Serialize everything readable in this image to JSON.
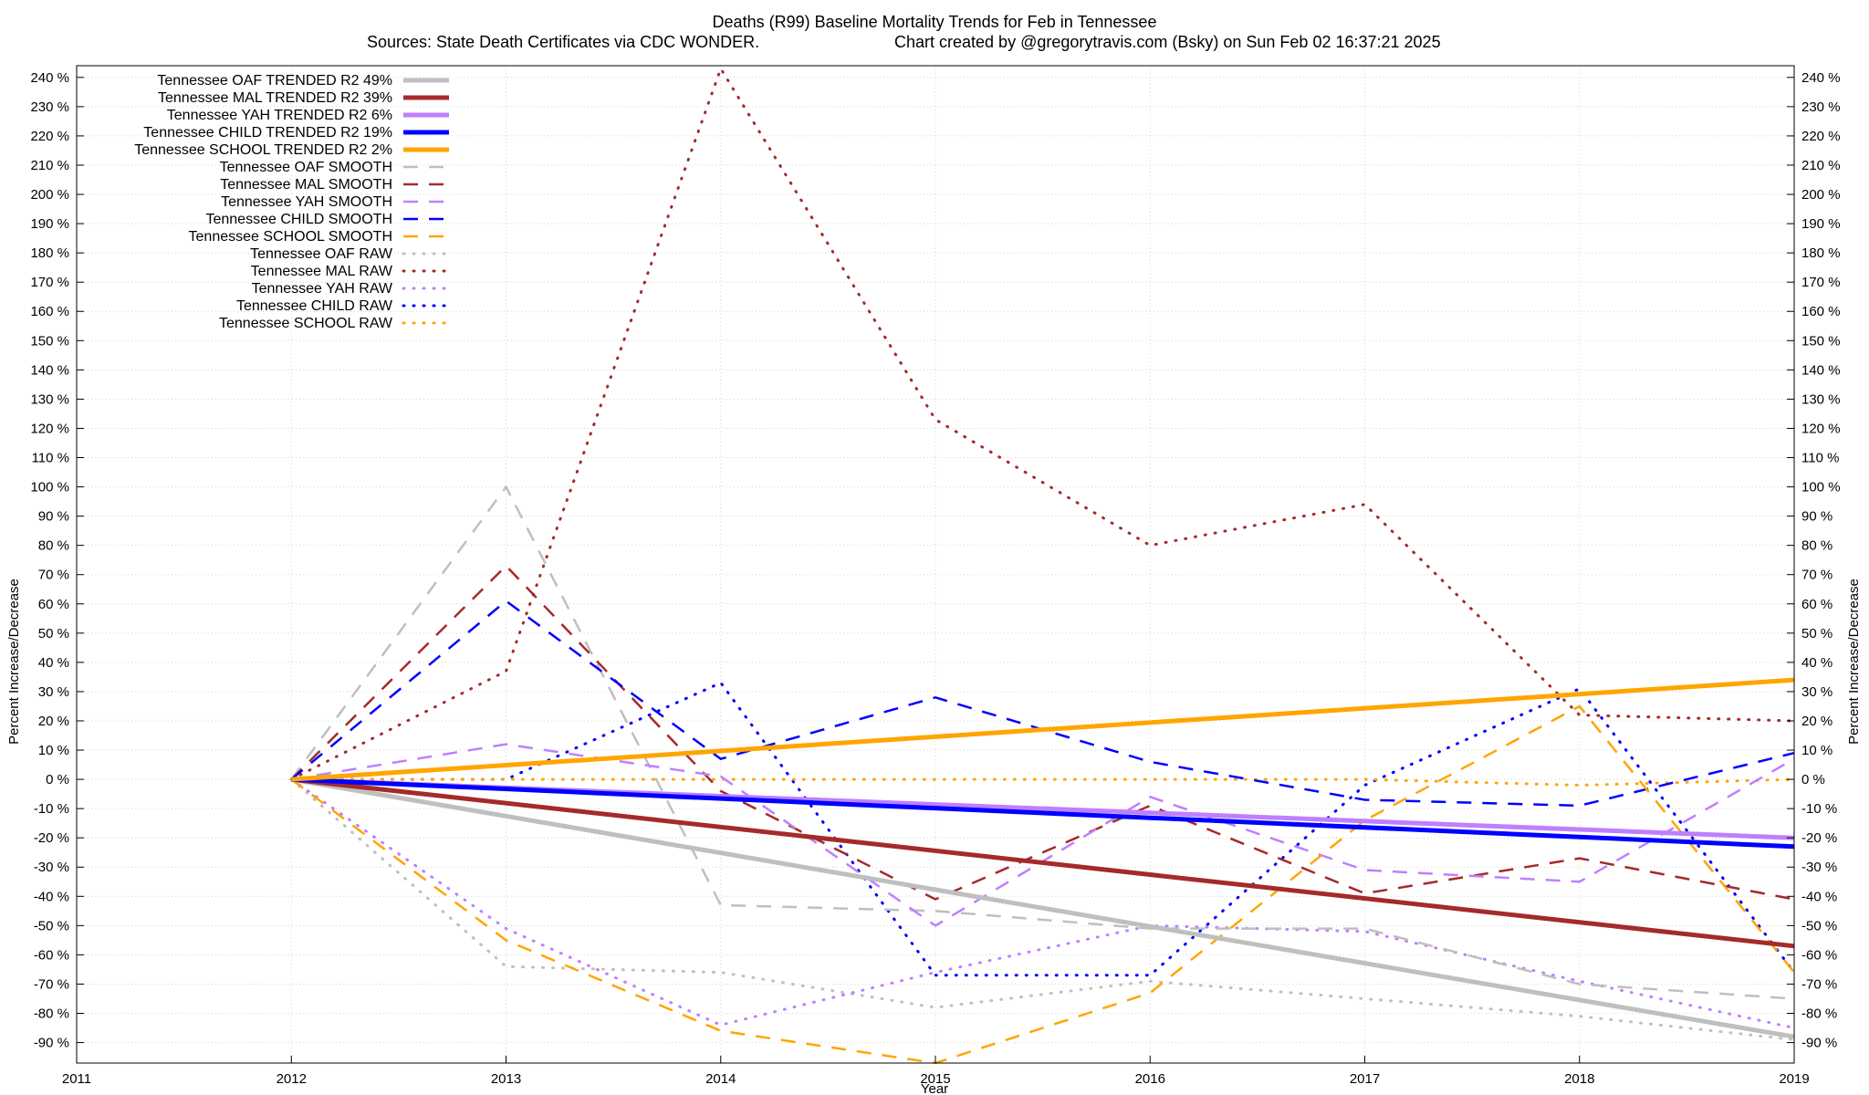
{
  "chart_data": {
    "type": "line",
    "title": "Deaths (R99)  Baseline Mortality Trends for Feb in Tennessee",
    "subtitle_left": "Sources: State Death Certificates via CDC WONDER.",
    "subtitle_right": "Chart created by @gregorytravis.com (Bsky) on Sun Feb 02 16:37:21 2025",
    "xlabel": "Year",
    "ylabel": "Percent Increase/Decrease",
    "xlim": [
      2011,
      2019
    ],
    "ylim": [
      -97,
      244
    ],
    "xticks": [
      2011,
      2012,
      2013,
      2014,
      2015,
      2016,
      2017,
      2018,
      2019
    ],
    "yticks": [
      -90,
      -80,
      -70,
      -60,
      -50,
      -40,
      -30,
      -20,
      -10,
      0,
      10,
      20,
      30,
      40,
      50,
      60,
      70,
      80,
      90,
      100,
      110,
      120,
      130,
      140,
      150,
      160,
      170,
      180,
      190,
      200,
      210,
      220,
      230,
      240
    ],
    "ytick_suffix": " %",
    "grid": true,
    "legend_position": "top-left",
    "colors": {
      "OAF": "#bfbfbf",
      "MAL": "#a52a2a",
      "YAH": "#bf7fff",
      "CHILD": "#0000ff",
      "SCHOOL": "#ffa500"
    },
    "series": [
      {
        "name": "Tennessee OAF TRENDED R2  49%",
        "group": "OAF",
        "style": "trend",
        "x": [
          2012,
          2019
        ],
        "values": [
          0,
          -88
        ]
      },
      {
        "name": "Tennessee MAL TRENDED R2  39%",
        "group": "MAL",
        "style": "trend",
        "x": [
          2012,
          2019
        ],
        "values": [
          0,
          -57
        ]
      },
      {
        "name": "Tennessee YAH TRENDED R2   6%",
        "group": "YAH",
        "style": "trend",
        "x": [
          2012,
          2019
        ],
        "values": [
          0,
          -20
        ]
      },
      {
        "name": "Tennessee CHILD TRENDED R2  19%",
        "group": "CHILD",
        "style": "trend",
        "x": [
          2012,
          2019
        ],
        "values": [
          0,
          -23
        ]
      },
      {
        "name": "Tennessee SCHOOL TRENDED R2   2%",
        "group": "SCHOOL",
        "style": "trend",
        "x": [
          2012,
          2019
        ],
        "values": [
          0,
          34
        ]
      },
      {
        "name": "Tennessee OAF SMOOTH",
        "group": "OAF",
        "style": "smooth",
        "x": [
          2012,
          2013,
          2014,
          2015,
          2016,
          2017,
          2018,
          2019
        ],
        "values": [
          0,
          100,
          -43,
          -45,
          -51,
          -51,
          -70,
          -75
        ]
      },
      {
        "name": "Tennessee MAL SMOOTH",
        "group": "MAL",
        "style": "smooth",
        "x": [
          2012,
          2013,
          2014,
          2015,
          2016,
          2017,
          2018,
          2019
        ],
        "values": [
          0,
          73,
          -4,
          -41,
          -9,
          -39,
          -27,
          -41
        ]
      },
      {
        "name": "Tennessee YAH SMOOTH",
        "group": "YAH",
        "style": "smooth",
        "x": [
          2012,
          2013,
          2014,
          2015,
          2016,
          2017,
          2018,
          2019
        ],
        "values": [
          0,
          12,
          1,
          -50,
          -6,
          -31,
          -35,
          7
        ]
      },
      {
        "name": "Tennessee CHILD SMOOTH",
        "group": "CHILD",
        "style": "smooth",
        "x": [
          2012,
          2013,
          2014,
          2015,
          2016,
          2017,
          2018,
          2019
        ],
        "values": [
          0,
          61,
          7,
          28,
          6,
          -7,
          -9,
          9
        ]
      },
      {
        "name": "Tennessee SCHOOL SMOOTH",
        "group": "SCHOOL",
        "style": "smooth",
        "x": [
          2012,
          2013,
          2014,
          2015,
          2016,
          2017,
          2018,
          2019
        ],
        "values": [
          0,
          -55,
          -86,
          -97,
          -73,
          -14,
          25,
          -66
        ]
      },
      {
        "name": "Tennessee OAF RAW",
        "group": "OAF",
        "style": "raw",
        "x": [
          2012,
          2013,
          2014,
          2015,
          2016,
          2017,
          2018,
          2019
        ],
        "values": [
          0,
          -64,
          -66,
          -78,
          -69,
          -75,
          -81,
          -89
        ]
      },
      {
        "name": "Tennessee MAL RAW",
        "group": "MAL",
        "style": "raw",
        "x": [
          2012,
          2013,
          2014,
          2015,
          2016,
          2017,
          2018,
          2019
        ],
        "values": [
          0,
          37,
          243,
          123,
          80,
          94,
          22,
          20
        ]
      },
      {
        "name": "Tennessee YAH RAW",
        "group": "YAH",
        "style": "raw",
        "x": [
          2012,
          2013,
          2014,
          2015,
          2016,
          2017,
          2018,
          2019
        ],
        "values": [
          0,
          -51,
          -84,
          -66,
          -50,
          -52,
          -69,
          -85
        ]
      },
      {
        "name": "Tennessee CHILD RAW",
        "group": "CHILD",
        "style": "raw",
        "x": [
          2012,
          2013,
          2014,
          2015,
          2016,
          2017,
          2018,
          2019
        ],
        "values": [
          0,
          0,
          33,
          -67,
          -67,
          -2,
          31,
          -66
        ]
      },
      {
        "name": "Tennessee SCHOOL RAW",
        "group": "SCHOOL",
        "style": "raw",
        "x": [
          2012,
          2013,
          2014,
          2015,
          2016,
          2017,
          2018,
          2019
        ],
        "values": [
          0,
          0,
          0,
          0,
          0,
          0,
          -2,
          0
        ]
      }
    ]
  }
}
